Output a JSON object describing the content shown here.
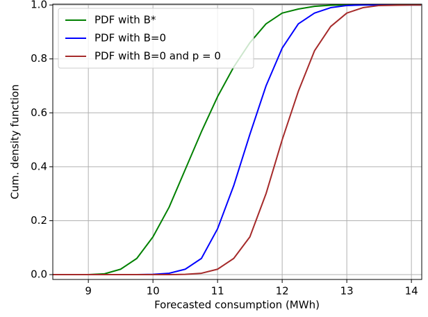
{
  "chart_data": {
    "type": "line",
    "xlabel": "Forecasted consumption (MWh)",
    "ylabel": "Cum. density function",
    "x": [
      8.45,
      9,
      9.25,
      9.5,
      9.75,
      10,
      10.25,
      10.5,
      10.75,
      11,
      11.25,
      11.5,
      11.75,
      12,
      12.25,
      12.5,
      12.75,
      13,
      13.25,
      13.5,
      14,
      14.15
    ],
    "series": [
      {
        "name": "PDF with B*",
        "color": "#008000",
        "values": [
          0,
          0,
          0.003,
          0.02,
          0.06,
          0.14,
          0.25,
          0.39,
          0.53,
          0.66,
          0.77,
          0.86,
          0.93,
          0.97,
          0.985,
          0.995,
          0.999,
          1,
          1,
          1,
          1,
          1
        ]
      },
      {
        "name": "PDF with B=0",
        "color": "#0000ff",
        "values": [
          0,
          0,
          0,
          0,
          0,
          0.001,
          0.005,
          0.02,
          0.06,
          0.17,
          0.33,
          0.52,
          0.7,
          0.84,
          0.93,
          0.97,
          0.99,
          0.998,
          1,
          1,
          1,
          1
        ]
      },
      {
        "name": "PDF with B=0 and p = 0",
        "color": "#a52a2a",
        "values": [
          0,
          0,
          0,
          0,
          0,
          0,
          0,
          0.001,
          0.005,
          0.02,
          0.06,
          0.14,
          0.3,
          0.5,
          0.68,
          0.83,
          0.92,
          0.97,
          0.99,
          0.998,
          1,
          1
        ]
      }
    ],
    "xlim": [
      8.45,
      14.16
    ],
    "ylim": [
      -0.018,
      1.003
    ],
    "xticks": [
      9,
      10,
      11,
      12,
      13,
      14
    ],
    "yticks": [
      {
        "value": 0,
        "label": "0.0"
      },
      {
        "value": 0.2,
        "label": "0.2"
      },
      {
        "value": 0.4,
        "label": "0.4"
      },
      {
        "value": 0.6,
        "label": "0.6"
      },
      {
        "value": 0.8,
        "label": "0.8"
      },
      {
        "value": 1,
        "label": "1.0"
      }
    ],
    "grid": true,
    "legend": "upper left"
  }
}
